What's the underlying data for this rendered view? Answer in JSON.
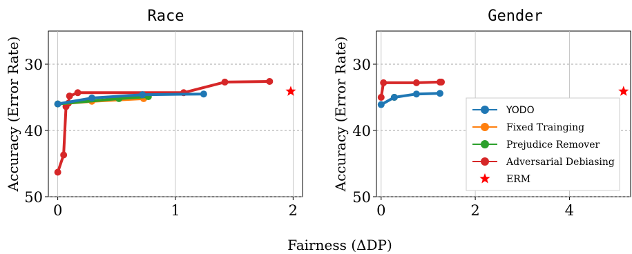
{
  "figure": {
    "shared_xlabel": "Fairness (ΔDP)",
    "ylabel": "Accuracy (Error Rate)"
  },
  "legend": {
    "placement": "lower-right of Gender panel",
    "entries": [
      "YODO",
      "Fixed Trainging",
      "Prejudice Remover",
      "Adversarial Debiasing",
      "ERM"
    ]
  },
  "colors": {
    "YODO": "#1f77b4",
    "Fixed Trainging": "#ff7f0e",
    "Prejudice Remover": "#2ca02c",
    "Adversarial Debiasing": "#d62728",
    "ERM": "#ff0000"
  },
  "chart_data": [
    {
      "type": "line",
      "title": "Race",
      "xlim": [
        -0.08,
        2.08
      ],
      "ylim": [
        50,
        25
      ],
      "y_inverted": true,
      "xticks": [
        0,
        1,
        2
      ],
      "yticks": [
        30,
        40,
        50
      ],
      "grid": true,
      "series": [
        {
          "name": "Adversarial Debiasing",
          "x": [
            0.0,
            0.05,
            0.07,
            0.09,
            0.1,
            0.17,
            1.07,
            1.42,
            1.8
          ],
          "y": [
            46.3,
            43.7,
            36.4,
            35.9,
            34.8,
            34.3,
            34.3,
            32.7,
            32.6
          ]
        },
        {
          "name": "Fixed Trainging",
          "x": [
            0.0,
            0.29,
            0.73
          ],
          "y": [
            36.0,
            35.6,
            35.2
          ]
        },
        {
          "name": "Prejudice Remover",
          "x": [
            0.0,
            0.52,
            0.77
          ],
          "y": [
            36.0,
            35.2,
            34.9
          ]
        },
        {
          "name": "YODO",
          "x": [
            0.0,
            0.29,
            0.72,
            1.24
          ],
          "y": [
            36.0,
            35.1,
            34.6,
            34.5
          ]
        },
        {
          "name": "ERM",
          "type": "scatter",
          "marker": "star",
          "x": [
            1.98
          ],
          "y": [
            34.1
          ]
        }
      ]
    },
    {
      "type": "line",
      "title": "Gender",
      "xlim": [
        -0.1,
        5.3
      ],
      "ylim": [
        50,
        25
      ],
      "y_inverted": true,
      "xticks": [
        0,
        2,
        4
      ],
      "yticks": [
        30,
        40,
        50
      ],
      "grid": true,
      "series": [
        {
          "name": "Adversarial Debiasing",
          "x": [
            0.0,
            0.05,
            0.75,
            1.25,
            1.28
          ],
          "y": [
            35.0,
            32.8,
            32.8,
            32.7,
            32.7
          ]
        },
        {
          "name": "Fixed Trainging",
          "x": [
            0.28
          ],
          "y": [
            35.0
          ]
        },
        {
          "name": "Prejudice Remover",
          "x": [
            0.28
          ],
          "y": [
            35.0
          ]
        },
        {
          "name": "YODO",
          "x": [
            0.0,
            0.28,
            0.75,
            1.25
          ],
          "y": [
            36.1,
            35.0,
            34.5,
            34.4
          ]
        },
        {
          "name": "ERM",
          "type": "scatter",
          "marker": "star",
          "x": [
            5.15
          ],
          "y": [
            34.1
          ]
        }
      ]
    }
  ]
}
